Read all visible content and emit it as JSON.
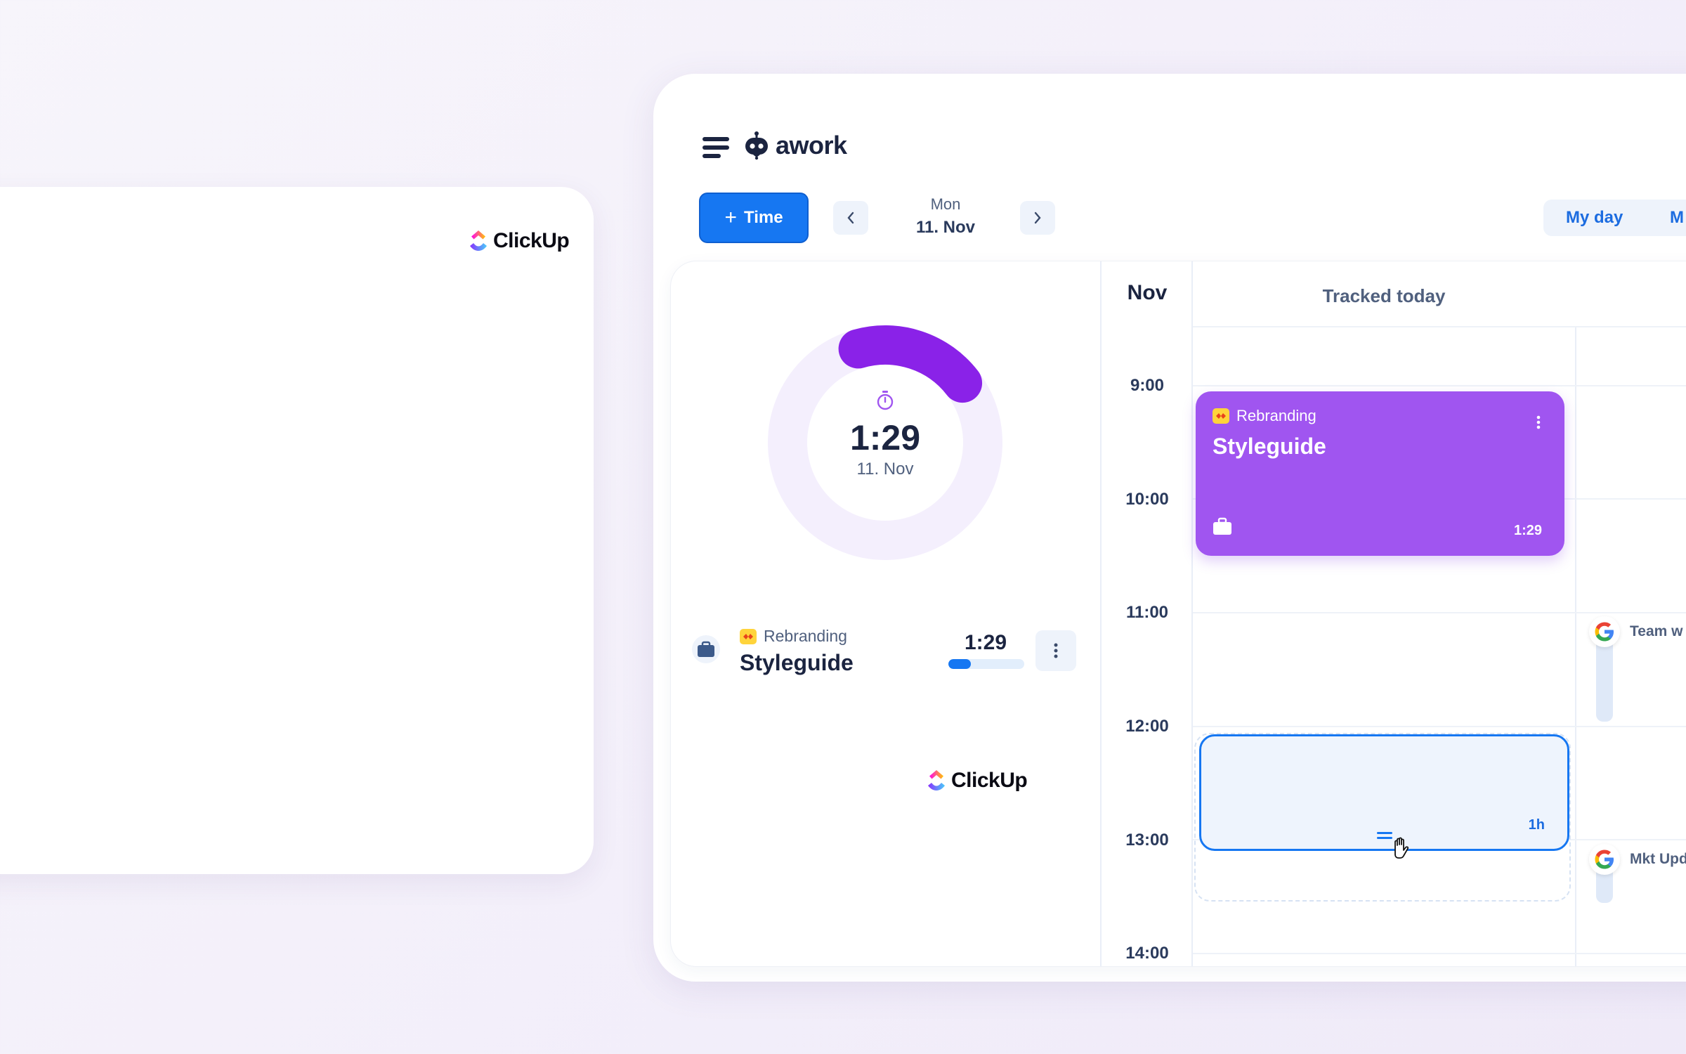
{
  "left_panel": {
    "logo_text": "ClickUp"
  },
  "app": {
    "brand_name": "awork",
    "toolbar": {
      "add_time_plus": "+",
      "add_time_label": "Time",
      "day_name": "Mon",
      "date": "11. Nov",
      "view_my_day": "My day",
      "view_next": "M"
    },
    "summary": {
      "total": "1:29",
      "date": "11. Nov",
      "progress": 0.19
    },
    "entry": {
      "project": "Rebranding",
      "name": "Styleguide",
      "duration": "1:29",
      "progress": 0.3
    },
    "center_logo_text": "ClickUp",
    "calendar": {
      "month": "Nov",
      "tracked_header": "Tracked today",
      "hours": [
        "9:00",
        "10:00",
        "11:00",
        "12:00",
        "13:00",
        "14:00"
      ],
      "event": {
        "project": "Rebranding",
        "name": "Styleguide",
        "duration": "1:29"
      },
      "draft_block": {
        "duration": "1h"
      },
      "google_events": [
        {
          "label": "Team w"
        },
        {
          "label": "Mkt Upd"
        }
      ]
    },
    "colors": {
      "primary": "#1677f2",
      "event_purple": "#a055f0",
      "ring_purple": "#8a22e8",
      "project_yellow": "#ffd43b"
    }
  }
}
